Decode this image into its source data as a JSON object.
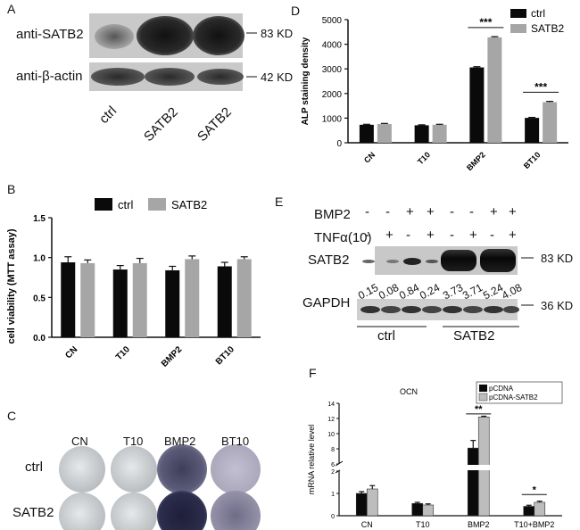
{
  "panelA": {
    "letter": "A",
    "rows": [
      {
        "label": "anti-SATB2",
        "size": "83 KD"
      },
      {
        "label": "anti-β-actin",
        "size": "42 KD"
      }
    ],
    "lanes": [
      "ctrl",
      "SATB2",
      "SATB2"
    ]
  },
  "panelB": {
    "letter": "B",
    "legend": [
      "ctrl",
      "SATB2"
    ],
    "chart_data": {
      "type": "bar",
      "categories": [
        "CN",
        "T10",
        "BMP2",
        "BT10"
      ],
      "series": [
        {
          "name": "ctrl",
          "values": [
            0.94,
            0.85,
            0.84,
            0.89
          ],
          "errors": [
            0.07,
            0.05,
            0.05,
            0.05
          ]
        },
        {
          "name": "SATB2",
          "values": [
            0.93,
            0.93,
            0.98,
            0.98
          ],
          "errors": [
            0.04,
            0.06,
            0.04,
            0.03
          ]
        }
      ],
      "ylabel": "cell viability (MTT assay)",
      "ylim": [
        0,
        1.5
      ],
      "yticks": [
        "0.0",
        "0.5",
        "1.0",
        "1.5"
      ],
      "colors": [
        "#0a0a0a",
        "#a6a6a6"
      ]
    }
  },
  "panelC": {
    "letter": "C",
    "columns": [
      "CN",
      "T10",
      "BMP2",
      "BT10"
    ],
    "rows": [
      "ctrl",
      "SATB2"
    ]
  },
  "panelD": {
    "letter": "D",
    "legend": [
      "ctrl",
      "SATB2"
    ],
    "chart_data": {
      "type": "bar",
      "categories": [
        "CN",
        "T10",
        "BMP2",
        "BT10"
      ],
      "series": [
        {
          "name": "ctrl",
          "values": [
            730,
            710,
            3060,
            1010
          ],
          "errors": [
            20,
            20,
            30,
            20
          ]
        },
        {
          "name": "SATB2",
          "values": [
            760,
            730,
            4280,
            1650
          ],
          "errors": [
            25,
            20,
            30,
            30
          ]
        }
      ],
      "ylabel": "ALP staining density",
      "ylim": [
        0,
        5000
      ],
      "yticks": [
        "0",
        "1000",
        "2000",
        "3000",
        "4000",
        "5000"
      ],
      "annotations": [
        "***",
        "***"
      ],
      "colors": [
        "#0a0a0a",
        "#a6a6a6"
      ]
    }
  },
  "panelE": {
    "letter": "E",
    "rowlabels": [
      "BMP2",
      "TNFα(10)",
      "SATB2",
      "GAPDH"
    ],
    "bmp2_signs": [
      "-",
      "-",
      "+",
      "+",
      "-",
      "-",
      "+",
      "+"
    ],
    "tnf_signs": [
      "-",
      "+",
      "-",
      "+",
      "-",
      "+",
      "-",
      "+"
    ],
    "quant": [
      "0.15",
      "0.08",
      "0.84",
      "0.24",
      "3.73",
      "3.71",
      "5.24",
      "4.08"
    ],
    "sizes": [
      "83 KD",
      "36 KD"
    ],
    "groups": [
      "ctrl",
      "SATB2"
    ]
  },
  "panelF": {
    "letter": "F",
    "legend": [
      "pCDNA",
      "pCDNA-SATB2"
    ],
    "chart_data": {
      "type": "bar",
      "title": "OCN",
      "categories": [
        "CN",
        "T10",
        "BMP2",
        "T10+BMP2"
      ],
      "series": [
        {
          "name": "pCDNA",
          "values": [
            1.0,
            0.55,
            8.1,
            0.42
          ],
          "errors": [
            0.08,
            0.05,
            1.0,
            0.05
          ]
        },
        {
          "name": "pCDNA-SATB2",
          "values": [
            1.2,
            0.48,
            12.2,
            0.6
          ],
          "errors": [
            0.15,
            0.05,
            0.1,
            0.05
          ]
        }
      ],
      "ylabel": "mRNA relative level",
      "yticks": [
        "0",
        "1",
        "2",
        "6",
        "8",
        "10",
        "12",
        "14"
      ],
      "annotations": [
        "**",
        "*"
      ],
      "colors": [
        "#0a0a0a",
        "#bdbdbd"
      ]
    }
  }
}
